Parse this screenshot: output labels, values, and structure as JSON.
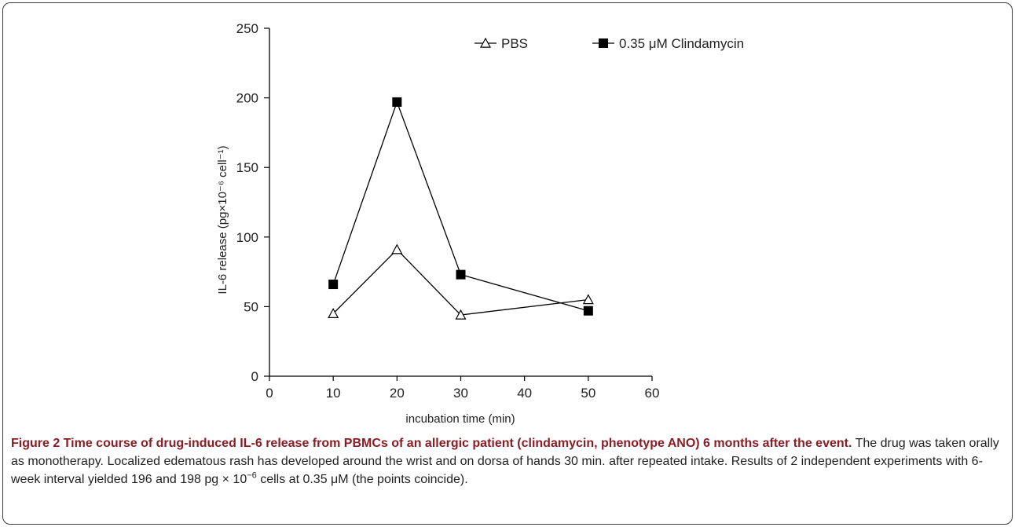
{
  "chart_data": {
    "type": "line",
    "xlabel": "incubation time (min)",
    "ylabel": "IL-6 release (pg×10⁻⁶ cell⁻¹)",
    "xlim": [
      0,
      60
    ],
    "ylim": [
      0,
      250
    ],
    "xticks": [
      "0",
      "10",
      "20",
      "30",
      "40",
      "50",
      "60"
    ],
    "yticks": [
      "0",
      "50",
      "100",
      "150",
      "200",
      "250"
    ],
    "grid": false,
    "legend_position": "top",
    "series": [
      {
        "name": "PBS",
        "marker": "open-triangle",
        "color": "#000000",
        "x": [
          10,
          20,
          30,
          50
        ],
        "y": [
          45,
          91,
          44,
          55
        ]
      },
      {
        "name": "0.35 μM Clindamycin",
        "marker": "filled-square",
        "color": "#000000",
        "x": [
          10,
          20,
          30,
          50
        ],
        "y": [
          66,
          197,
          73,
          47
        ]
      }
    ]
  },
  "caption": {
    "lead": "Figure 2 Time course of drug-induced IL-6 release from PBMCs of an allergic patient (clindamycin, phenotype ANO) 6 months after the event.",
    "body_a": " The drug was taken orally as monotherapy. Localized edematous rash has developed around the wrist and on dorsa of hands 30 min. after repeated intake. Results of 2 independent experiments with 6-week interval yielded 196 and 198 pg × 10",
    "sup": "−6",
    "body_b": " cells at 0.35 μM (the points coincide)."
  }
}
